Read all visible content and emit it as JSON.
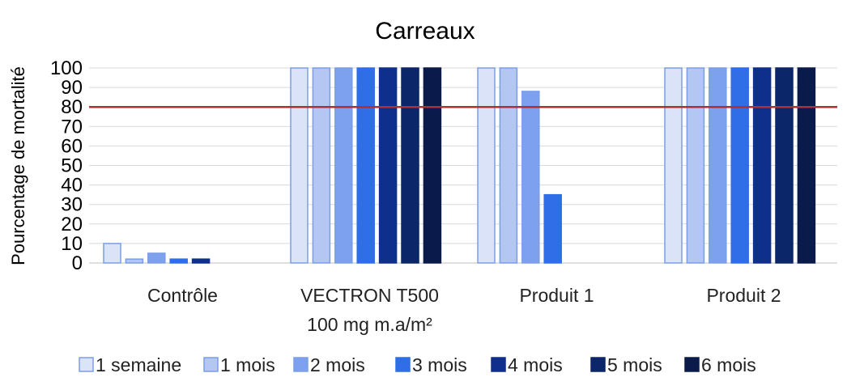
{
  "chart_data": {
    "type": "bar",
    "title": "Carreaux",
    "ylabel": "Pourcentage de mortalité",
    "xlabel": "",
    "ylim": [
      0,
      100
    ],
    "yticks": [
      0,
      10,
      20,
      30,
      40,
      50,
      60,
      70,
      80,
      90,
      100
    ],
    "grid": true,
    "legend_position": "bottom",
    "categories": [
      [
        "Contrôle"
      ],
      [
        "VECTRON T500",
        "100 mg m.a/m²"
      ],
      [
        "Produit 1"
      ],
      [
        "Produit 2"
      ]
    ],
    "series": [
      {
        "name": "1 semaine",
        "color": "#dae3f8",
        "border": "#7a9ee6",
        "values": [
          10,
          100,
          100,
          100
        ]
      },
      {
        "name": "1 mois",
        "color": "#b4c7f2",
        "border": "#7a9ee6",
        "values": [
          2,
          100,
          100,
          100
        ]
      },
      {
        "name": "2 mois",
        "color": "#7ea1ef",
        "border": "#7a9ee6",
        "values": [
          5,
          100,
          88,
          100
        ]
      },
      {
        "name": "3 mois",
        "color": "#2f6ee6",
        "border": "#2f6ee6",
        "values": [
          2,
          100,
          35,
          100
        ]
      },
      {
        "name": "4 mois",
        "color": "#0e2f8c",
        "border": "#0e2f8c",
        "values": [
          2,
          100,
          0,
          100
        ]
      },
      {
        "name": "5 mois",
        "color": "#0b2669",
        "border": "#0b2669",
        "values": [
          0,
          100,
          0,
          100
        ]
      },
      {
        "name": "6 mois",
        "color": "#0a1a4a",
        "border": "#0a1a4a",
        "values": [
          0,
          100,
          0,
          100
        ]
      }
    ],
    "threshold": {
      "value": 80,
      "color": "#b03030"
    }
  }
}
